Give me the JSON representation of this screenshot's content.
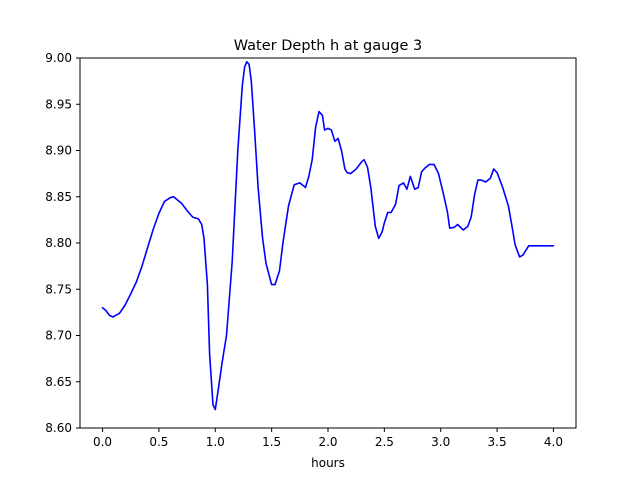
{
  "chart_data": {
    "type": "line",
    "title": "Water Depth h at gauge 3",
    "xlabel": "hours",
    "ylabel": "",
    "xlim": [
      -0.2,
      4.2
    ],
    "ylim": [
      8.6,
      9.0
    ],
    "xticks": [
      0.0,
      0.5,
      1.0,
      1.5,
      2.0,
      2.5,
      3.0,
      3.5,
      4.0
    ],
    "xtick_labels": [
      "0.0",
      "0.5",
      "1.0",
      "1.5",
      "2.0",
      "2.5",
      "3.0",
      "3.5",
      "4.0"
    ],
    "yticks": [
      8.6,
      8.65,
      8.7,
      8.75,
      8.8,
      8.85,
      8.9,
      8.95,
      9.0
    ],
    "ytick_labels": [
      "8.60",
      "8.65",
      "8.70",
      "8.75",
      "8.80",
      "8.85",
      "8.90",
      "8.95",
      "9.00"
    ],
    "grid": false,
    "legend": "none",
    "series": [
      {
        "color": "#0000ff",
        "x": [
          0.0,
          0.03,
          0.06,
          0.09,
          0.12,
          0.15,
          0.2,
          0.25,
          0.3,
          0.35,
          0.4,
          0.45,
          0.5,
          0.55,
          0.6,
          0.63,
          0.66,
          0.7,
          0.75,
          0.8,
          0.85,
          0.88,
          0.9,
          0.93,
          0.95,
          0.98,
          1.0,
          1.03,
          1.06,
          1.1,
          1.15,
          1.2,
          1.24,
          1.26,
          1.28,
          1.3,
          1.32,
          1.35,
          1.38,
          1.42,
          1.45,
          1.5,
          1.53,
          1.57,
          1.6,
          1.65,
          1.7,
          1.75,
          1.8,
          1.83,
          1.86,
          1.89,
          1.92,
          1.95,
          1.97,
          2.0,
          2.03,
          2.06,
          2.09,
          2.12,
          2.15,
          2.17,
          2.2,
          2.25,
          2.3,
          2.32,
          2.35,
          2.38,
          2.42,
          2.45,
          2.48,
          2.5,
          2.53,
          2.56,
          2.6,
          2.63,
          2.67,
          2.7,
          2.73,
          2.77,
          2.8,
          2.83,
          2.86,
          2.9,
          2.94,
          2.98,
          3.03,
          3.06,
          3.08,
          3.12,
          3.15,
          3.2,
          3.24,
          3.27,
          3.3,
          3.33,
          3.36,
          3.4,
          3.44,
          3.47,
          3.5,
          3.55,
          3.6,
          3.63,
          3.66,
          3.7,
          3.73,
          3.78,
          3.82,
          3.86,
          3.9,
          3.93,
          3.97,
          4.0
        ],
        "y": [
          8.73,
          8.727,
          8.722,
          8.72,
          8.722,
          8.724,
          8.733,
          8.745,
          8.758,
          8.775,
          8.795,
          8.815,
          8.832,
          8.845,
          8.849,
          8.85,
          8.847,
          8.843,
          8.835,
          8.828,
          8.826,
          8.82,
          8.805,
          8.755,
          8.68,
          8.625,
          8.62,
          8.645,
          8.67,
          8.7,
          8.78,
          8.9,
          8.97,
          8.99,
          8.996,
          8.993,
          8.975,
          8.92,
          8.86,
          8.805,
          8.778,
          8.755,
          8.755,
          8.77,
          8.8,
          8.84,
          8.863,
          8.865,
          8.86,
          8.872,
          8.89,
          8.925,
          8.942,
          8.938,
          8.922,
          8.924,
          8.922,
          8.91,
          8.913,
          8.9,
          8.88,
          8.876,
          8.875,
          8.88,
          8.888,
          8.89,
          8.882,
          8.86,
          8.818,
          8.805,
          8.812,
          8.822,
          8.833,
          8.833,
          8.842,
          8.862,
          8.865,
          8.858,
          8.872,
          8.858,
          8.86,
          8.877,
          8.881,
          8.885,
          8.885,
          8.875,
          8.85,
          8.833,
          8.816,
          8.817,
          8.82,
          8.814,
          8.818,
          8.828,
          8.852,
          8.868,
          8.868,
          8.866,
          8.87,
          8.88,
          8.876,
          8.86,
          8.84,
          8.82,
          8.798,
          8.785,
          8.787,
          8.797,
          8.797,
          8.797,
          8.797,
          8.797,
          8.797,
          8.797
        ]
      }
    ]
  }
}
